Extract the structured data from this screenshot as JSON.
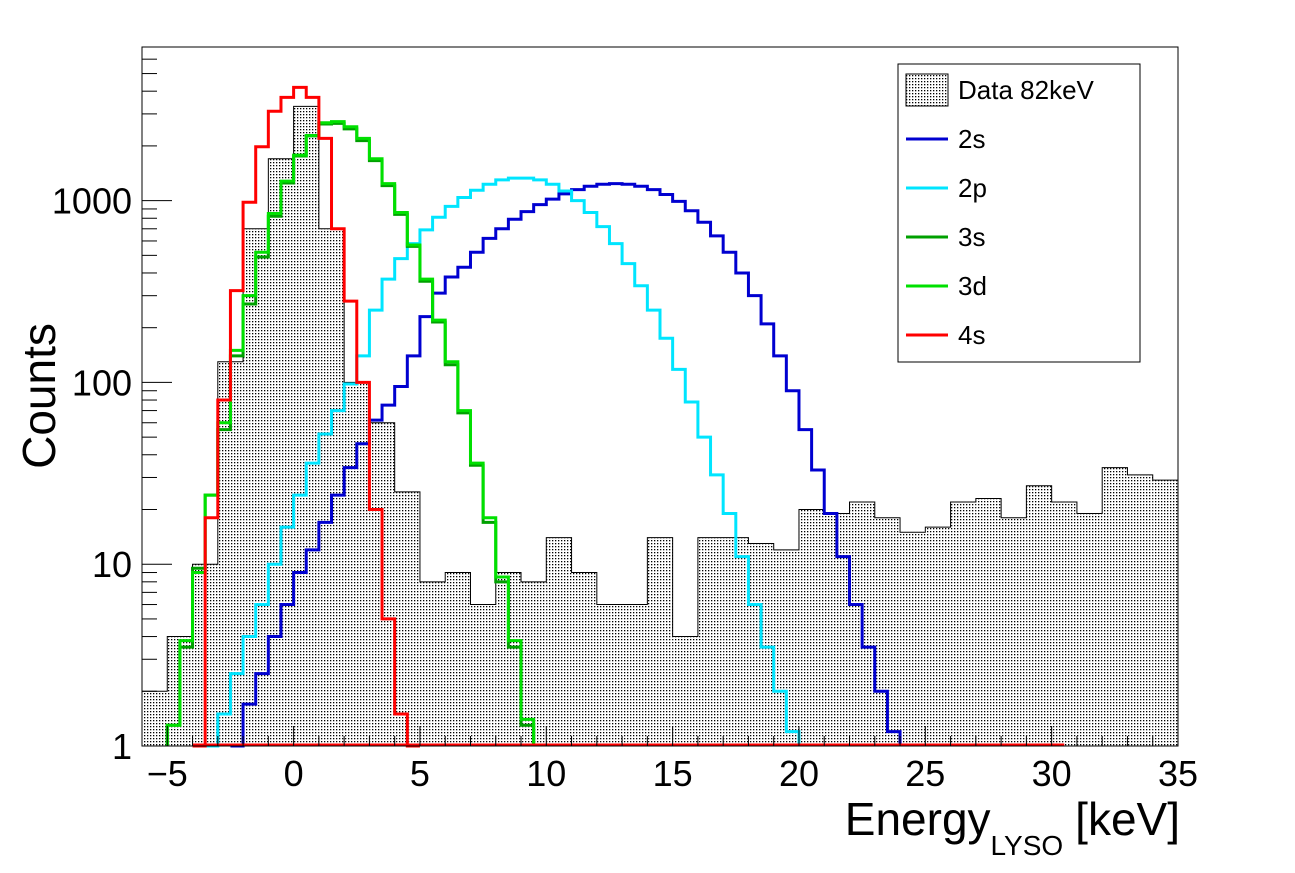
{
  "chart_data": {
    "type": "histogram",
    "x_axis": {
      "title": "Energy",
      "subscript": "LYSO",
      "unit": "[keV]",
      "range": [
        -6,
        35
      ],
      "ticks": [
        "−5",
        "0",
        "5",
        "10",
        "15",
        "20",
        "25",
        "30",
        "35"
      ],
      "tick_values": [
        -5,
        0,
        5,
        10,
        15,
        20,
        25,
        30,
        35
      ]
    },
    "y_axis": {
      "title": "Counts",
      "scale": "log",
      "range": [
        1,
        7000
      ],
      "ticks": [
        "1",
        "10",
        "100",
        "1000"
      ],
      "tick_values": [
        1,
        10,
        100,
        1000
      ]
    },
    "legend": {
      "placement": "top-right",
      "entries": [
        {
          "label": "Data 82keV",
          "style": "hatched-fill"
        },
        {
          "label": "2s",
          "color": "#0000d0"
        },
        {
          "label": "2p",
          "color": "#00e5ff"
        },
        {
          "label": "3s",
          "color": "#00a000"
        },
        {
          "label": "3d",
          "color": "#00e000"
        },
        {
          "label": "4s",
          "color": "#ff0000"
        }
      ]
    },
    "bin_width": 1,
    "data_histogram": {
      "name": "Data 82keV",
      "edges": [
        -6,
        -5,
        -4,
        -3,
        -2,
        -1,
        0,
        1,
        2,
        3,
        4,
        5,
        6,
        7,
        8,
        9,
        10,
        11,
        12,
        13,
        14,
        15,
        16,
        17,
        18,
        19,
        20,
        21,
        22,
        23,
        24,
        25,
        26,
        27,
        28,
        29,
        30,
        31,
        32,
        33,
        34,
        35
      ],
      "counts": [
        2,
        4,
        10,
        130,
        700,
        1700,
        3300,
        700,
        100,
        60,
        25,
        8,
        9,
        6,
        9,
        8,
        14,
        9,
        6,
        6,
        14,
        4,
        14,
        14,
        13,
        12,
        20,
        19,
        22,
        18,
        15,
        16,
        22,
        23,
        18,
        27,
        22,
        19,
        34,
        31,
        29
      ]
    },
    "series": [
      {
        "name": "2s",
        "color": "#0000d0",
        "start": -2.5,
        "width": 0.5,
        "values": [
          1,
          1.7,
          2.5,
          4,
          6,
          9,
          12,
          17,
          24,
          34,
          46,
          62,
          75,
          95,
          140,
          230,
          310,
          380,
          430,
          520,
          620,
          700,
          790,
          870,
          950,
          1020,
          1090,
          1150,
          1200,
          1230,
          1240,
          1230,
          1200,
          1150,
          1080,
          990,
          880,
          760,
          640,
          520,
          400,
          300,
          210,
          140,
          90,
          55,
          33,
          19,
          11,
          6,
          3.5,
          2,
          1.2
        ]
      },
      {
        "name": "2p",
        "color": "#00e5ff",
        "start": -3.5,
        "width": 0.5,
        "values": [
          1,
          1.5,
          2.5,
          4,
          6,
          10,
          16,
          24,
          36,
          52,
          70,
          98,
          140,
          250,
          370,
          480,
          580,
          690,
          810,
          930,
          1040,
          1140,
          1230,
          1300,
          1330,
          1330,
          1300,
          1230,
          1130,
          1000,
          860,
          720,
          580,
          450,
          340,
          250,
          175,
          118,
          78,
          50,
          31,
          19,
          11,
          6,
          3.5,
          2,
          1.2
        ]
      },
      {
        "name": "3s",
        "color": "#00a000",
        "start": -5,
        "width": 0.5,
        "values": [
          1.3,
          3.5,
          9.5,
          24,
          55,
          140,
          270,
          490,
          820,
          1250,
          1760,
          2270,
          2640,
          2660,
          2480,
          2140,
          1660,
          1210,
          840,
          560,
          360,
          215,
          125,
          68,
          35,
          17,
          8,
          3.5,
          1.3
        ]
      },
      {
        "name": "3d",
        "color": "#00e000",
        "start": -5,
        "width": 0.5,
        "values": [
          1.3,
          3.8,
          9,
          24,
          60,
          150,
          300,
          520,
          850,
          1280,
          1780,
          2280,
          2680,
          2720,
          2550,
          2200,
          1700,
          1240,
          860,
          570,
          370,
          220,
          130,
          70,
          36,
          18,
          8.5,
          3.8,
          1.4
        ]
      },
      {
        "name": "4s",
        "color": "#ff0000",
        "start": -4,
        "width": 0.5,
        "values": [
          1,
          18,
          80,
          320,
          980,
          1980,
          3100,
          3700,
          4200,
          3700,
          2200,
          700,
          280,
          100,
          20,
          5,
          1.5,
          1
        ]
      }
    ]
  }
}
